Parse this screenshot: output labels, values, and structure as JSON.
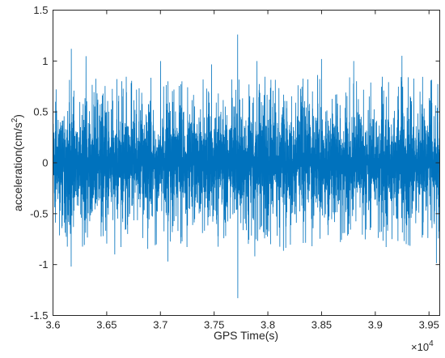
{
  "chart_data": {
    "type": "line",
    "title": "",
    "xlabel": "GPS Time(s)",
    "ylabel": "acceleration(cm/s",
    "ylabel_sup": "2",
    "ylabel_close": ")",
    "x_exponent_base": "×10",
    "x_exponent_power": "4",
    "xlim": [
      3.6,
      3.96
    ],
    "ylim": [
      -1.5,
      1.5
    ],
    "x_ticks": [
      3.6,
      3.65,
      3.7,
      3.75,
      3.8,
      3.85,
      3.9,
      3.95
    ],
    "x_tick_labels": [
      "3.6",
      "3.65",
      "3.7",
      "3.75",
      "3.8",
      "3.85",
      "3.9",
      "3.95"
    ],
    "y_ticks": [
      -1.5,
      -1,
      -0.5,
      0,
      0.5,
      1,
      1.5
    ],
    "y_tick_labels": [
      "-1.5",
      "-1",
      "-0.5",
      "0",
      "0.5",
      "1",
      "1.5"
    ],
    "grid": false,
    "series": [
      {
        "color": "#0072BD",
        "typical_amplitude": 0.5,
        "peaks": [
          {
            "x": 3.617,
            "y": 1.12
          },
          {
            "x": 3.617,
            "y": -1.02
          },
          {
            "x": 3.7,
            "y": 1.0
          },
          {
            "x": 3.707,
            "y": -0.97
          },
          {
            "x": 3.772,
            "y": 1.26
          },
          {
            "x": 3.772,
            "y": -1.33
          },
          {
            "x": 3.79,
            "y": 1.0
          },
          {
            "x": 3.85,
            "y": 1.02
          },
          {
            "x": 3.88,
            "y": 1.0
          }
        ]
      }
    ]
  }
}
